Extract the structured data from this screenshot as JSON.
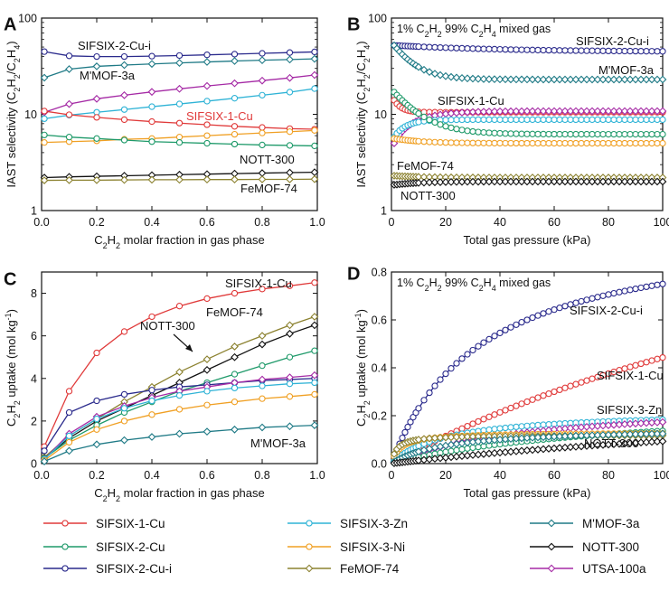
{
  "colors": {
    "SIFSIX-1-Cu": "#e03a3a",
    "SIFSIX-2-Cu": "#1f9a6a",
    "SIFSIX-2-Cu-i": "#2a2a8c",
    "SIFSIX-3-Zn": "#2fb3d6",
    "SIFSIX-3-Ni": "#f0a024",
    "FeMOF-74": "#8c8230",
    "M'MOF-3a": "#1f7a86",
    "NOTT-300": "#111111",
    "UTSA-100a": "#a52aa5"
  },
  "legend": [
    {
      "name": "SIFSIX-1-Cu",
      "marker": "circle"
    },
    {
      "name": "SIFSIX-3-Zn",
      "marker": "circle"
    },
    {
      "name": "M'MOF-3a",
      "marker": "diamond"
    },
    {
      "name": "SIFSIX-2-Cu",
      "marker": "circle"
    },
    {
      "name": "SIFSIX-3-Ni",
      "marker": "circle"
    },
    {
      "name": "NOTT-300",
      "marker": "diamond"
    },
    {
      "name": "SIFSIX-2-Cu-i",
      "marker": "circle"
    },
    {
      "name": "FeMOF-74",
      "marker": "diamond"
    },
    {
      "name": "UTSA-100a",
      "marker": "diamond"
    }
  ],
  "chart_data": [
    {
      "panel": "A",
      "type": "line",
      "scale": "log",
      "xlabel": "C2H2 molar fraction in gas phase",
      "ylabel": "IAST selectivity (C2H2/C2H4)",
      "xlim": [
        0,
        1
      ],
      "ylim": [
        1,
        100
      ],
      "xticks": [
        "0.0",
        "0.2",
        "0.4",
        "0.6",
        "0.8",
        "1.0"
      ],
      "yticks": [
        "1",
        "10",
        "100"
      ],
      "x": [
        0.01,
        0.1,
        0.2,
        0.3,
        0.4,
        0.5,
        0.6,
        0.7,
        0.8,
        0.9,
        0.99
      ],
      "series": [
        {
          "name": "SIFSIX-2-Cu-i",
          "marker": "circle",
          "values": [
            44.8,
            40.5,
            39.8,
            39.8,
            40.2,
            40.8,
            41.5,
            42.2,
            43,
            43.8,
            44.5
          ]
        },
        {
          "name": "M'MOF-3a",
          "marker": "diamond",
          "values": [
            24,
            29.5,
            31.5,
            32.5,
            33.4,
            34.2,
            35,
            35.8,
            36.5,
            37.1,
            37.7
          ]
        },
        {
          "name": "UTSA-100a",
          "marker": "diamond",
          "values": [
            10.5,
            12.8,
            14.5,
            15.8,
            17.1,
            18.4,
            19.7,
            21,
            22.4,
            23.9,
            25.6
          ]
        },
        {
          "name": "SIFSIX-3-Zn",
          "marker": "circle",
          "values": [
            9,
            9.8,
            10.5,
            11.2,
            12,
            12.8,
            13.7,
            14.7,
            15.8,
            17,
            18.5
          ]
        },
        {
          "name": "SIFSIX-1-Cu",
          "marker": "circle",
          "values": [
            10.8,
            9.9,
            9.3,
            8.8,
            8.4,
            8.1,
            7.8,
            7.5,
            7.3,
            7.1,
            7
          ]
        },
        {
          "name": "SIFSIX-3-Ni",
          "marker": "circle",
          "values": [
            5.1,
            5.2,
            5.3,
            5.5,
            5.6,
            5.8,
            6,
            6.2,
            6.4,
            6.6,
            6.8
          ]
        },
        {
          "name": "SIFSIX-2-Cu",
          "marker": "circle",
          "values": [
            6.1,
            5.8,
            5.6,
            5.4,
            5.2,
            5.1,
            5,
            4.9,
            4.8,
            4.75,
            4.7
          ]
        },
        {
          "name": "NOTT-300",
          "marker": "diamond",
          "values": [
            2.2,
            2.24,
            2.27,
            2.3,
            2.33,
            2.36,
            2.39,
            2.42,
            2.45,
            2.48,
            2.5
          ]
        },
        {
          "name": "FeMOF-74",
          "marker": "diamond",
          "values": [
            2.06,
            2.07,
            2.07,
            2.08,
            2.09,
            2.09,
            2.1,
            2.1,
            2.11,
            2.11,
            2.12
          ]
        }
      ],
      "annotations": [
        {
          "text": "SIFSIX-2-Cu-i",
          "color": "#111111"
        },
        {
          "text": "M'MOF-3a",
          "color": "#111111"
        },
        {
          "text": "SIFSIX-1-Cu",
          "color": "#e03a3a"
        },
        {
          "text": "NOTT-300",
          "color": "#111111"
        },
        {
          "text": "FeMOF-74",
          "color": "#111111"
        }
      ]
    },
    {
      "panel": "B",
      "type": "line",
      "scale": "log",
      "title": "1% C2H2 99% C2H4 mixed gas",
      "xlabel": "Total gas pressure (kPa)",
      "ylabel": "IAST selectivity (C2H2/C2H4)",
      "xlim": [
        0,
        100
      ],
      "ylim": [
        1,
        100
      ],
      "xticks": [
        "0",
        "20",
        "40",
        "60",
        "80",
        "100"
      ],
      "yticks": [
        "1",
        "10",
        "100"
      ],
      "series": [
        {
          "name": "SIFSIX-2-Cu-i",
          "marker": "circle",
          "start": 52,
          "end": 44.5,
          "tau": 40
        },
        {
          "name": "M'MOF-3a",
          "marker": "diamond",
          "start": 52,
          "end": 23,
          "tau": 7
        },
        {
          "name": "SIFSIX-1-Cu",
          "marker": "circle",
          "start": 14,
          "end": 10.5,
          "tau": 2.5
        },
        {
          "name": "UTSA-100a",
          "marker": "diamond",
          "start": 5,
          "end": 10.8,
          "tau": 9
        },
        {
          "name": "SIFSIX-3-Zn",
          "marker": "circle",
          "start": 5.8,
          "end": 8.8,
          "tau": 5
        },
        {
          "name": "SIFSIX-2-Cu",
          "marker": "circle",
          "start": 17,
          "end": 6.2,
          "tau": 9
        },
        {
          "name": "SIFSIX-3-Ni",
          "marker": "circle",
          "start": 5.6,
          "end": 5,
          "tau": 10
        },
        {
          "name": "FeMOF-74",
          "marker": "diamond",
          "start": 2.3,
          "end": 2.2,
          "tau": 10
        },
        {
          "name": "NOTT-300",
          "marker": "diamond",
          "start": 1.85,
          "end": 2.0,
          "tau": 10
        }
      ],
      "annotations": [
        {
          "text": "SIFSIX-2-Cu-i",
          "color": "#111111"
        },
        {
          "text": "M'MOF-3a",
          "color": "#111111"
        },
        {
          "text": "SIFSIX-1-Cu",
          "color": "#111111"
        },
        {
          "text": "FeMOF-74",
          "color": "#111111"
        },
        {
          "text": "NOTT-300",
          "color": "#111111"
        }
      ]
    },
    {
      "panel": "C",
      "type": "line",
      "scale": "linear",
      "xlabel": "C2H2 molar fraction in gas phase",
      "ylabel": "C2H2 uptake (mol kg-1)",
      "xlim": [
        0,
        1
      ],
      "ylim": [
        0,
        9
      ],
      "xticks": [
        "0.0",
        "0.2",
        "0.4",
        "0.6",
        "0.8",
        "1.0"
      ],
      "yticks": [
        "0",
        "2",
        "4",
        "6",
        "8"
      ],
      "x": [
        0.01,
        0.1,
        0.2,
        0.3,
        0.4,
        0.5,
        0.6,
        0.7,
        0.8,
        0.9,
        0.99
      ],
      "series": [
        {
          "name": "SIFSIX-1-Cu",
          "marker": "circle",
          "values": [
            0.8,
            3.4,
            5.2,
            6.2,
            6.9,
            7.4,
            7.75,
            8.0,
            8.2,
            8.35,
            8.5
          ]
        },
        {
          "name": "FeMOF-74",
          "marker": "diamond",
          "values": [
            0.3,
            1.3,
            2.1,
            2.9,
            3.6,
            4.3,
            4.9,
            5.5,
            6.0,
            6.5,
            6.9
          ]
        },
        {
          "name": "NOTT-300",
          "marker": "diamond",
          "values": [
            0.25,
            1.2,
            2.0,
            2.6,
            3.2,
            3.8,
            4.4,
            5.0,
            5.6,
            6.1,
            6.5
          ]
        },
        {
          "name": "SIFSIX-2-Cu",
          "marker": "circle",
          "values": [
            0.25,
            1.1,
            1.8,
            2.4,
            2.9,
            3.4,
            3.8,
            4.2,
            4.6,
            5.0,
            5.3
          ]
        },
        {
          "name": "SIFSIX-2-Cu-i",
          "marker": "circle",
          "values": [
            0.6,
            2.4,
            2.95,
            3.25,
            3.45,
            3.6,
            3.7,
            3.8,
            3.9,
            3.95,
            4.0
          ]
        },
        {
          "name": "UTSA-100a",
          "marker": "diamond",
          "values": [
            0.2,
            1.4,
            2.2,
            2.7,
            3.1,
            3.4,
            3.6,
            3.8,
            3.95,
            4.05,
            4.15
          ]
        },
        {
          "name": "SIFSIX-3-Zn",
          "marker": "circle",
          "values": [
            0.2,
            1.3,
            2.1,
            2.6,
            2.95,
            3.2,
            3.4,
            3.55,
            3.65,
            3.75,
            3.8
          ]
        },
        {
          "name": "SIFSIX-3-Ni",
          "marker": "circle",
          "values": [
            0.15,
            1.0,
            1.6,
            2.0,
            2.3,
            2.55,
            2.75,
            2.9,
            3.05,
            3.15,
            3.25
          ]
        },
        {
          "name": "M'MOF-3a",
          "marker": "diamond",
          "values": [
            0.1,
            0.6,
            0.9,
            1.1,
            1.25,
            1.4,
            1.5,
            1.6,
            1.7,
            1.75,
            1.8
          ]
        }
      ],
      "annotations": [
        {
          "text": "SIFSIX-1-Cu",
          "color": "#111111"
        },
        {
          "text": "FeMOF-74",
          "color": "#111111"
        },
        {
          "text": "NOTT-300",
          "color": "#111111"
        },
        {
          "text": "M'MOF-3a",
          "color": "#111111"
        }
      ]
    },
    {
      "panel": "D",
      "type": "line",
      "scale": "linear",
      "title": "1% C2H2 99% C2H4 mixed gas",
      "xlabel": "Total gas pressure (kPa)",
      "ylabel": "C2H2 uptake (mol kg-1)",
      "xlim": [
        0,
        100
      ],
      "ylim": [
        0,
        0.8
      ],
      "xticks": [
        "0",
        "20",
        "40",
        "60",
        "80",
        "100"
      ],
      "yticks": [
        "0.0",
        "0.2",
        "0.4",
        "0.6",
        "0.8"
      ],
      "series": [
        {
          "name": "SIFSIX-2-Cu-i",
          "marker": "circle",
          "kind": "langmuir",
          "qmax": 1.0,
          "b": 0.03
        },
        {
          "name": "SIFSIX-1-Cu",
          "marker": "circle",
          "kind": "langmuir",
          "qmax": 1.55,
          "b": 0.004
        },
        {
          "name": "SIFSIX-3-Zn",
          "marker": "circle",
          "kind": "langmuir",
          "qmax": 0.22,
          "b": 0.05
        },
        {
          "name": "UTSA-100a",
          "marker": "diamond",
          "kind": "langmuir",
          "qmax": 0.26,
          "b": 0.02
        },
        {
          "name": "SIFSIX-2-Cu",
          "marker": "circle",
          "kind": "langmuir",
          "qmax": 0.25,
          "b": 0.012
        },
        {
          "name": "SIFSIX-3-Ni",
          "marker": "circle",
          "kind": "langmuir",
          "qmax": 0.13,
          "b": 0.3
        },
        {
          "name": "FeMOF-74",
          "marker": "diamond",
          "kind": "langmuir",
          "qmax": 0.12,
          "b": 0.5
        },
        {
          "name": "M'MOF-3a",
          "marker": "diamond",
          "kind": "langmuir",
          "qmax": 0.15,
          "b": 0.05
        },
        {
          "name": "NOTT-300",
          "marker": "diamond",
          "kind": "langmuir",
          "qmax": 0.3,
          "b": 0.0045
        }
      ],
      "annotations": [
        {
          "text": "SIFSIX-2-Cu-i",
          "color": "#111111"
        },
        {
          "text": "SIFSIX-1-Cu",
          "color": "#111111"
        },
        {
          "text": "SIFSIX-3-Zn",
          "color": "#111111"
        },
        {
          "text": "NOTT-300",
          "color": "#111111"
        }
      ]
    }
  ]
}
